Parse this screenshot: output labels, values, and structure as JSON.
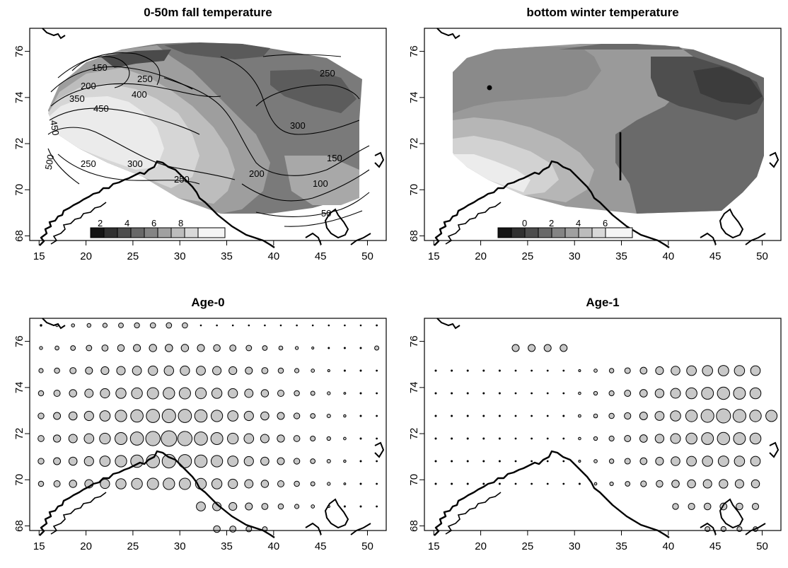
{
  "panels": [
    {
      "id": "p1",
      "title": "0-50m fall temperature",
      "x_ticks": [
        "15",
        "20",
        "25",
        "30",
        "35",
        "40",
        "45",
        "50"
      ],
      "y_ticks": [
        "68",
        "70",
        "72",
        "74",
        "76"
      ],
      "legend_labels": [
        "2",
        "4",
        "6",
        "8"
      ],
      "contour_labels": [
        "150",
        "200",
        "250",
        "350",
        "400",
        "450",
        "450",
        "500",
        "250",
        "300",
        "250",
        "200",
        "300",
        "150",
        "100",
        "50",
        "250"
      ]
    },
    {
      "id": "p2",
      "title": "bottom winter temperature",
      "x_ticks": [
        "15",
        "20",
        "25",
        "30",
        "35",
        "40",
        "45",
        "50"
      ],
      "y_ticks": [
        "68",
        "70",
        "72",
        "74",
        "76"
      ],
      "legend_labels": [
        "0",
        "2",
        "4",
        "6"
      ]
    },
    {
      "id": "p3",
      "title": "Age-0",
      "x_ticks": [
        "15",
        "20",
        "25",
        "30",
        "35",
        "40",
        "45",
        "50"
      ],
      "y_ticks": [
        "68",
        "70",
        "72",
        "74",
        "76"
      ]
    },
    {
      "id": "p4",
      "title": "Age-1",
      "x_ticks": [
        "15",
        "20",
        "25",
        "30",
        "35",
        "40",
        "45",
        "50"
      ],
      "y_ticks": [
        "68",
        "70",
        "72",
        "74",
        "76"
      ]
    }
  ],
  "colors": {
    "coast": "#000000",
    "bubble_fill": "#c8c8c8",
    "bubble_stroke": "#000000"
  },
  "map_extent": {
    "lon": [
      14,
      52
    ],
    "lat": [
      67.8,
      77
    ]
  }
}
